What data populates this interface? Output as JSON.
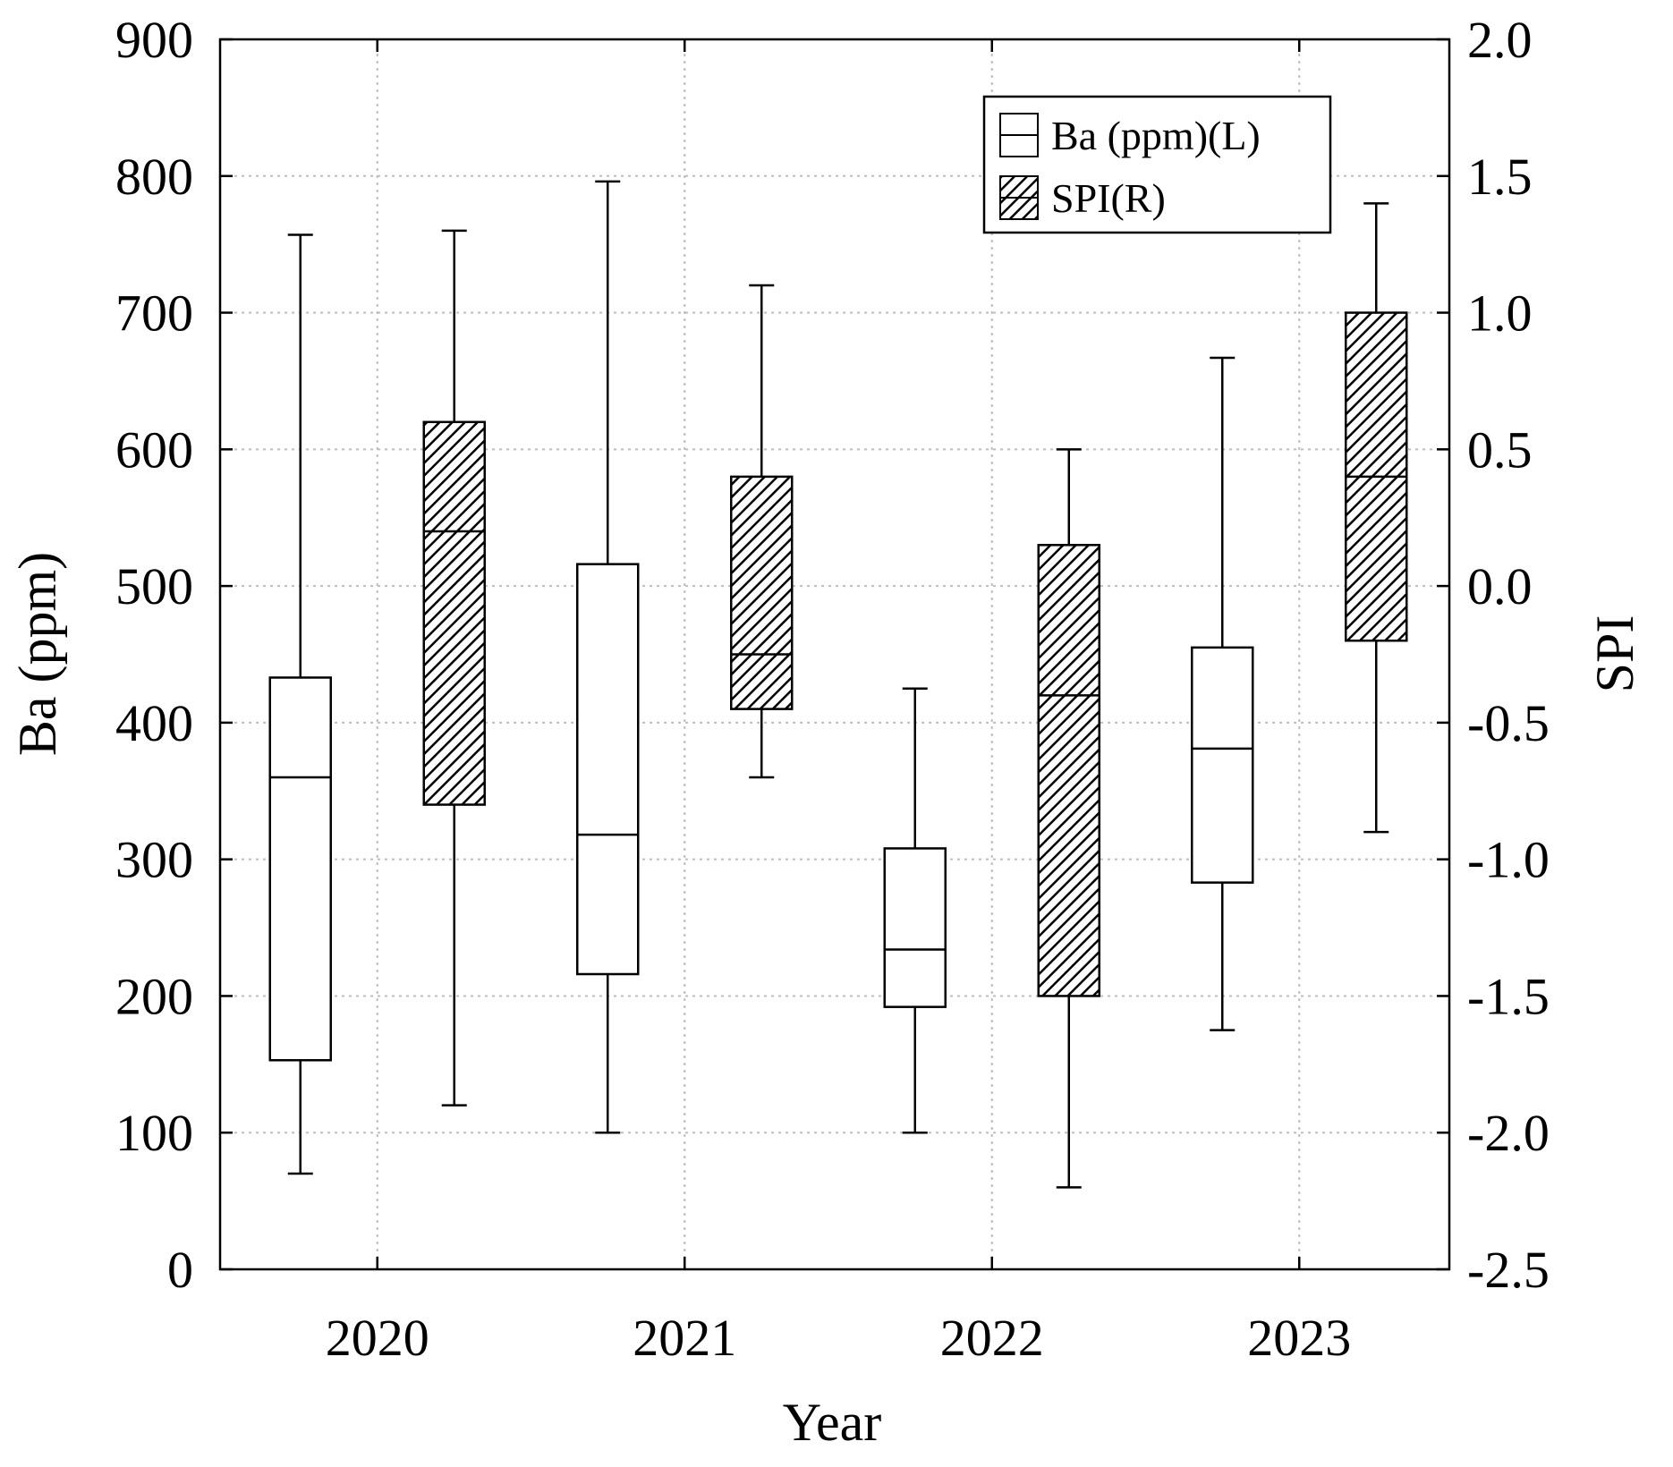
{
  "chart_data": {
    "type": "box",
    "xlabel": "Year",
    "ylabel_left": "Ba (ppm)",
    "ylabel_right": "SPI",
    "categories": [
      "2020",
      "2021",
      "2022",
      "2023"
    ],
    "ylim_left": [
      0,
      900
    ],
    "ylim_right": [
      -2.5,
      2.0
    ],
    "yticks_left": [
      "0",
      "100",
      "200",
      "300",
      "400",
      "500",
      "600",
      "700",
      "800",
      "900"
    ],
    "yticks_right": [
      "-2.5",
      "-2.0",
      "-1.5",
      "-1.0",
      "-0.5",
      "0.0",
      "0.5",
      "1.0",
      "1.5",
      "2.0"
    ],
    "grid": true,
    "legend_position": "top-right",
    "series": [
      {
        "name": "Ba (ppm)(L)",
        "axis": "left",
        "style": "open",
        "boxes": [
          {
            "min": 70,
            "q1": 153,
            "median": 360,
            "q3": 433,
            "max": 757
          },
          {
            "min": 100,
            "q1": 216,
            "median": 318,
            "q3": 516,
            "max": 796
          },
          {
            "min": 100,
            "q1": 192,
            "median": 234,
            "q3": 308,
            "max": 425
          },
          {
            "min": 175,
            "q1": 283,
            "median": 381,
            "q3": 455,
            "max": 667
          }
        ]
      },
      {
        "name": "SPI(R)",
        "axis": "right",
        "style": "hatched",
        "boxes": [
          {
            "min": -1.9,
            "q1": -0.8,
            "median": 0.2,
            "q3": 0.6,
            "max": 1.3
          },
          {
            "min": -0.7,
            "q1": -0.45,
            "median": -0.25,
            "q3": 0.4,
            "max": 1.1
          },
          {
            "min": -2.2,
            "q1": -1.5,
            "median": -0.4,
            "q3": 0.15,
            "max": 0.5
          },
          {
            "min": -0.9,
            "q1": -0.2,
            "median": 0.4,
            "q3": 1.0,
            "max": 1.4
          }
        ]
      }
    ]
  },
  "colors": {
    "line": "#000000",
    "grid": "#bdbdbd",
    "background": "#ffffff",
    "hatch": "#000000"
  }
}
